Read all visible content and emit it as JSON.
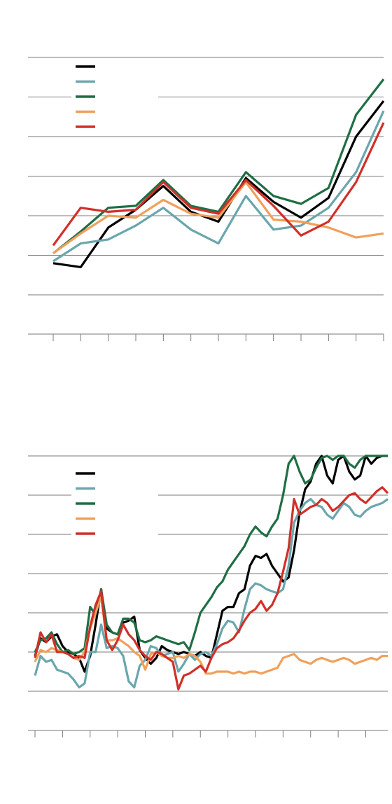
{
  "chart_data": [
    {
      "type": "line",
      "title": "",
      "xlabel": "",
      "ylabel": "",
      "grid": true,
      "legend": "top-left",
      "x": [
        0,
        1,
        2,
        3,
        4,
        5,
        6,
        7,
        8,
        9,
        10,
        11,
        12
      ],
      "ylim": [
        -1,
        6
      ],
      "series": [
        {
          "color": "#000000",
          "values": [
            0.8,
            0.7,
            1.7,
            2.15,
            2.75,
            2.1,
            1.85,
            2.95,
            2.35,
            1.95,
            2.45,
            4.0,
            4.9
          ]
        },
        {
          "color": "#6aa6ad",
          "values": [
            0.85,
            1.3,
            1.4,
            1.75,
            2.2,
            1.65,
            1.3,
            2.5,
            1.65,
            1.75,
            2.2,
            3.1,
            4.65
          ]
        },
        {
          "color": "#1f6e45",
          "values": [
            1.05,
            1.6,
            2.2,
            2.25,
            2.9,
            2.25,
            2.1,
            3.1,
            2.5,
            2.3,
            2.7,
            4.55,
            5.45
          ]
        },
        {
          "color": "#f0a05a",
          "values": [
            1.05,
            1.55,
            2.0,
            1.95,
            2.4,
            2.05,
            1.95,
            2.85,
            1.9,
            1.85,
            1.7,
            1.45,
            1.55
          ]
        },
        {
          "color": "#d03028",
          "values": [
            1.25,
            2.2,
            2.1,
            2.15,
            2.85,
            2.2,
            2.05,
            2.9,
            2.25,
            1.5,
            1.85,
            2.85,
            4.35
          ]
        }
      ]
    },
    {
      "type": "line",
      "title": "",
      "xlabel": "",
      "ylabel": "",
      "grid": true,
      "legend": "top-left",
      "x": [
        0,
        1,
        2,
        3,
        4,
        5,
        6,
        7,
        8,
        9,
        10,
        11,
        12,
        13,
        14,
        15,
        16,
        17,
        18,
        19,
        20,
        21,
        22,
        23,
        24,
        25,
        26,
        27,
        28,
        29,
        30,
        31,
        32,
        33,
        34,
        35,
        36,
        37,
        38,
        39,
        40,
        41,
        42,
        43,
        44,
        45,
        46,
        47,
        48,
        49,
        50,
        51,
        52,
        53,
        54,
        55,
        56,
        57,
        58,
        59,
        60,
        61,
        62,
        63,
        64
      ],
      "ylim": [
        -1,
        6
      ],
      "series": [
        {
          "color": "#000000",
          "values": [
            0.9,
            1.35,
            1.25,
            1.4,
            1.45,
            1.15,
            1.0,
            0.95,
            0.85,
            0.5,
            0.9,
            1.7,
            2.6,
            1.6,
            1.5,
            1.45,
            1.75,
            1.8,
            1.9,
            1.05,
            0.85,
            0.7,
            0.85,
            1.15,
            1.05,
            1.0,
            0.95,
            1.0,
            0.95,
            0.9,
            1.0,
            0.9,
            0.85,
            1.45,
            2.05,
            2.15,
            2.15,
            2.5,
            2.6,
            3.2,
            3.45,
            3.4,
            3.5,
            3.2,
            3.0,
            2.8,
            2.9,
            3.6,
            4.55,
            5.15,
            5.35,
            5.8,
            6.0,
            5.5,
            5.3,
            5.9,
            6.0,
            5.6,
            5.4,
            5.5,
            6.0,
            5.8,
            5.95,
            6.0,
            6.0
          ]
        },
        {
          "color": "#6aa6ad",
          "values": [
            0.4,
            0.9,
            0.75,
            0.8,
            0.55,
            0.5,
            0.45,
            0.3,
            0.1,
            0.2,
            1.0,
            1.0,
            1.7,
            1.1,
            1.15,
            1.1,
            0.9,
            0.25,
            0.1,
            0.65,
            0.8,
            1.15,
            1.1,
            0.9,
            0.95,
            1.0,
            0.5,
            0.7,
            0.95,
            0.8,
            0.95,
            1.0,
            0.9,
            1.2,
            1.6,
            1.8,
            1.75,
            1.5,
            2.1,
            2.6,
            2.75,
            2.7,
            2.6,
            2.55,
            2.5,
            2.6,
            3.2,
            4.3,
            4.6,
            4.8,
            4.9,
            4.75,
            4.7,
            4.5,
            4.4,
            4.6,
            4.8,
            4.7,
            4.5,
            4.45,
            4.6,
            4.7,
            4.75,
            4.8,
            4.9
          ]
        },
        {
          "color": "#1f6e45",
          "values": [
            1.0,
            1.3,
            1.35,
            1.5,
            1.2,
            1.0,
            1.05,
            0.95,
            1.0,
            1.1,
            2.15,
            1.95,
            2.6,
            1.7,
            1.5,
            1.45,
            1.85,
            1.85,
            1.75,
            1.3,
            1.25,
            1.3,
            1.4,
            1.35,
            1.3,
            1.25,
            1.2,
            1.25,
            1.05,
            1.5,
            2.0,
            2.2,
            2.4,
            2.65,
            2.8,
            3.1,
            3.3,
            3.5,
            3.7,
            4.0,
            4.2,
            4.05,
            3.95,
            4.2,
            4.4,
            5.0,
            5.8,
            6.0,
            5.6,
            5.3,
            5.4,
            5.7,
            5.95,
            6.0,
            5.9,
            6.0,
            6.0,
            5.8,
            5.7,
            5.9,
            6.0,
            6.0,
            6.0,
            6.0,
            6.0
          ]
        },
        {
          "color": "#f0a05a",
          "values": [
            0.75,
            1.05,
            1.0,
            1.1,
            1.05,
            1.0,
            0.95,
            0.85,
            0.8,
            1.0,
            1.6,
            2.0,
            2.4,
            1.3,
            1.3,
            1.35,
            1.25,
            1.15,
            1.0,
            0.9,
            0.55,
            0.95,
            1.0,
            0.9,
            0.85,
            0.85,
            0.9,
            0.85,
            0.95,
            0.9,
            0.75,
            0.45,
            0.45,
            0.5,
            0.5,
            0.5,
            0.45,
            0.5,
            0.45,
            0.5,
            0.5,
            0.45,
            0.5,
            0.55,
            0.6,
            0.85,
            0.9,
            0.95,
            0.8,
            0.75,
            0.7,
            0.8,
            0.85,
            0.8,
            0.75,
            0.8,
            0.85,
            0.8,
            0.7,
            0.75,
            0.8,
            0.85,
            0.8,
            0.9,
            0.9
          ]
        },
        {
          "color": "#d03028",
          "values": [
            0.85,
            1.5,
            1.25,
            1.45,
            1.0,
            1.0,
            0.95,
            0.85,
            0.9,
            0.85,
            1.65,
            2.2,
            2.55,
            1.3,
            1.05,
            1.3,
            1.7,
            1.45,
            1.3,
            1.05,
            0.9,
            0.8,
            1.0,
            0.95,
            0.85,
            0.75,
            0.05,
            0.4,
            0.45,
            0.55,
            0.65,
            0.5,
            0.85,
            1.1,
            1.2,
            1.25,
            1.35,
            1.55,
            1.8,
            2.0,
            2.1,
            2.3,
            2.05,
            2.2,
            2.5,
            3.05,
            3.65,
            4.9,
            4.5,
            4.6,
            4.7,
            4.75,
            4.9,
            4.8,
            4.6,
            4.7,
            4.85,
            5.0,
            5.05,
            4.9,
            4.8,
            4.95,
            5.1,
            5.2,
            5.05
          ]
        }
      ]
    }
  ]
}
